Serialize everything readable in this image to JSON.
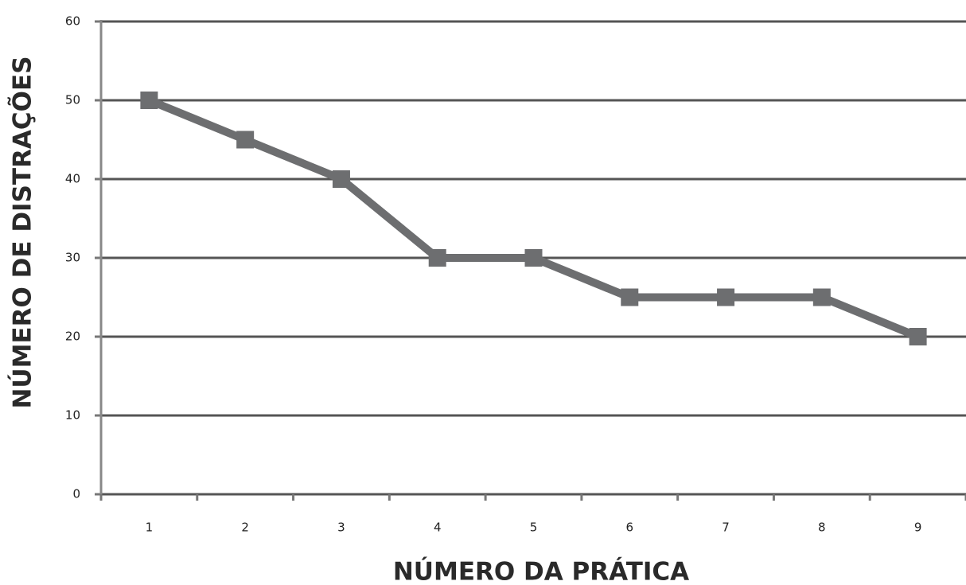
{
  "chart_data": {
    "type": "line",
    "xlabel": "NÚMERO DA PRÁTICA",
    "ylabel": "NÚMERO DE DISTRAÇÕES",
    "categories": [
      "1",
      "2",
      "3",
      "4",
      "5",
      "6",
      "7",
      "8",
      "9"
    ],
    "values": [
      50,
      45,
      40,
      30,
      30,
      25,
      25,
      25,
      20
    ],
    "color": "#6d6e70",
    "ylim": [
      0,
      60
    ],
    "yticks": [
      0,
      10,
      20,
      30,
      40,
      50,
      60
    ],
    "grid": true
  }
}
